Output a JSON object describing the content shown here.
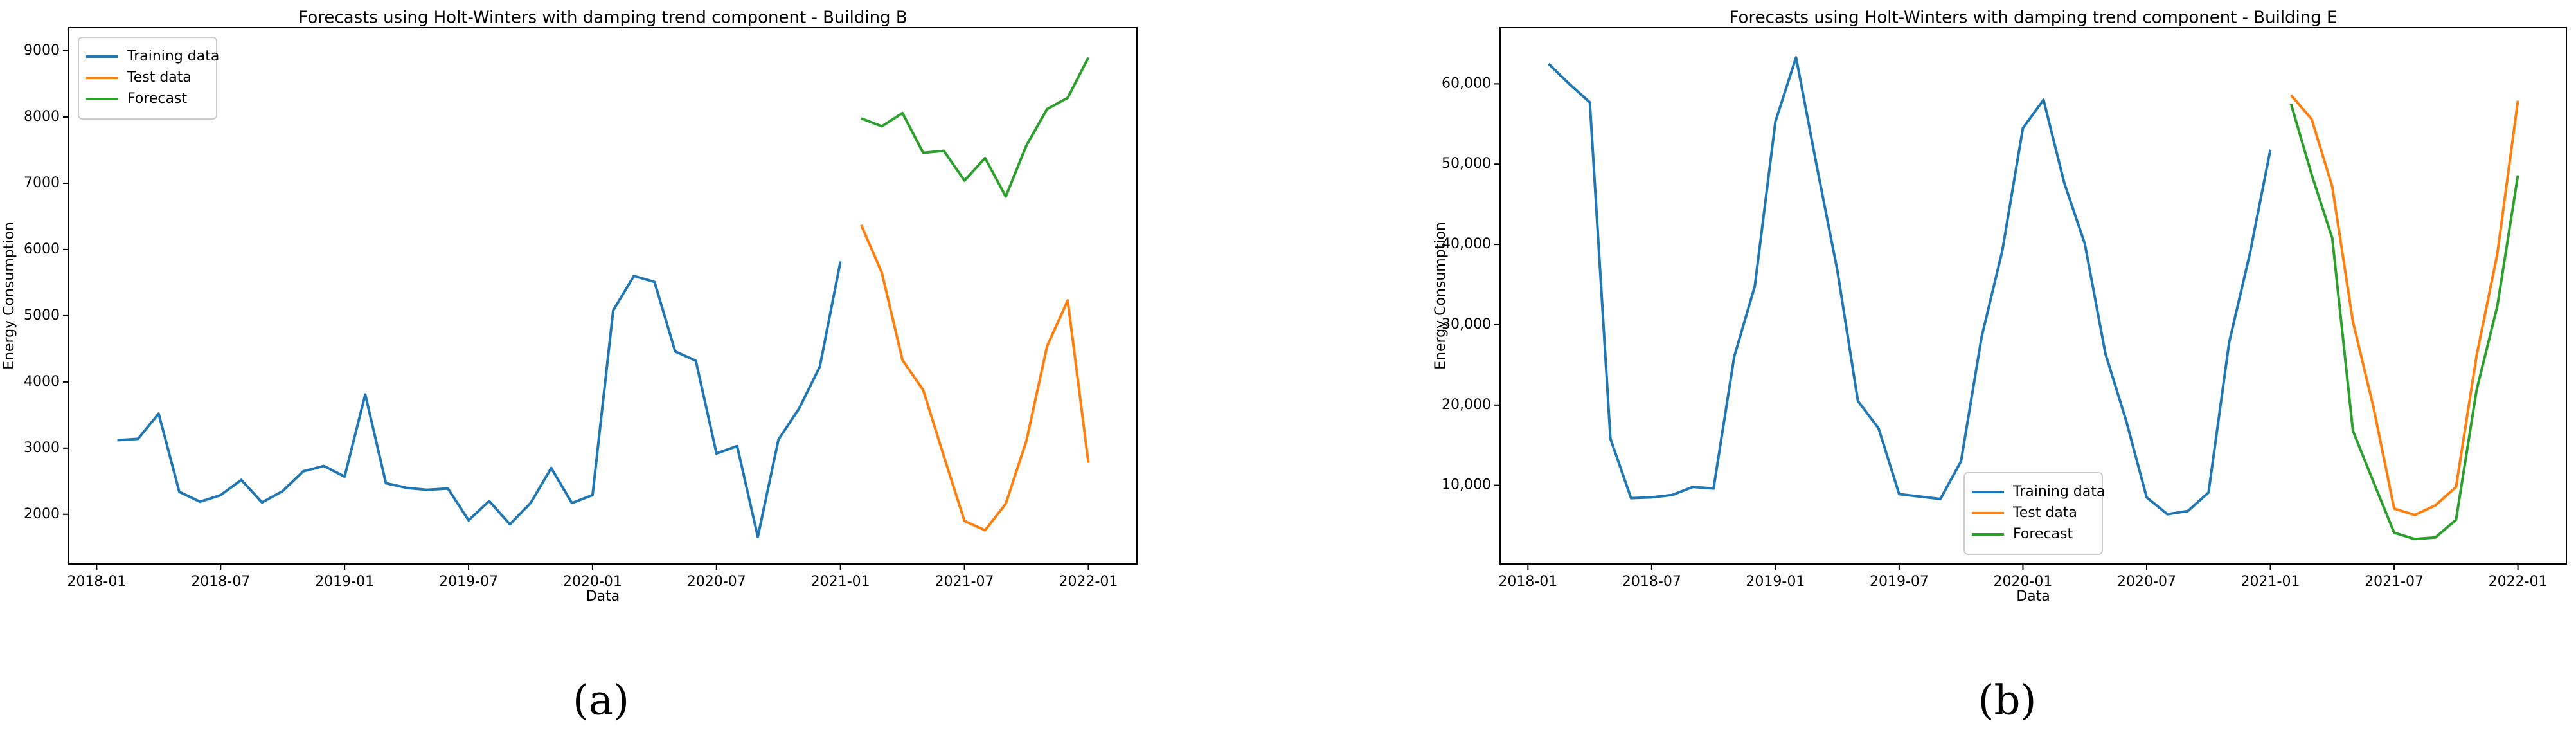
{
  "chart_data": [
    {
      "type": "line",
      "title": "Forecasts using Holt-Winters with damping trend component - Building B",
      "caption": "(a)",
      "x_label": "Data",
      "y_label": "Energy Consumption",
      "x": [
        "2018-02",
        "2018-03",
        "2018-04",
        "2018-05",
        "2018-06",
        "2018-07",
        "2018-08",
        "2018-09",
        "2018-10",
        "2018-11",
        "2018-12",
        "2019-01",
        "2019-02",
        "2019-03",
        "2019-04",
        "2019-05",
        "2019-06",
        "2019-07",
        "2019-08",
        "2019-09",
        "2019-10",
        "2019-11",
        "2019-12",
        "2020-01",
        "2020-02",
        "2020-03",
        "2020-04",
        "2020-05",
        "2020-06",
        "2020-07",
        "2020-08",
        "2020-09",
        "2020-10",
        "2020-11",
        "2020-12",
        "2021-01",
        "2021-02",
        "2021-03",
        "2021-04",
        "2021-05",
        "2021-06",
        "2021-07",
        "2021-08",
        "2021-09",
        "2021-10",
        "2021-11",
        "2021-12",
        "2022-01"
      ],
      "series": [
        {
          "name": "Training data",
          "color": "#1f77b4",
          "values": [
            3120,
            3140,
            3520,
            2340,
            2190,
            2290,
            2520,
            2180,
            2350,
            2650,
            2730,
            2570,
            3810,
            2470,
            2400,
            2370,
            2390,
            1910,
            2200,
            1850,
            2170,
            2700,
            2170,
            2290,
            5080,
            5600,
            5510,
            4460,
            4320,
            2920,
            3030,
            1660,
            3130,
            3600,
            4230,
            5820,
            null,
            null,
            null,
            null,
            null,
            null,
            null,
            null,
            null,
            null,
            null,
            null
          ]
        },
        {
          "name": "Test data",
          "color": "#ff7f0e",
          "values": [
            null,
            null,
            null,
            null,
            null,
            null,
            null,
            null,
            null,
            null,
            null,
            null,
            null,
            null,
            null,
            null,
            null,
            null,
            null,
            null,
            null,
            null,
            null,
            null,
            null,
            null,
            null,
            null,
            null,
            null,
            null,
            null,
            null,
            null,
            null,
            null,
            6370,
            5650,
            4330,
            3880,
            2880,
            1900,
            1760,
            2160,
            3110,
            4540,
            5230,
            2780
          ]
        },
        {
          "name": "Forecast",
          "color": "#2ca02c",
          "values": [
            null,
            null,
            null,
            null,
            null,
            null,
            null,
            null,
            null,
            null,
            null,
            null,
            null,
            null,
            null,
            null,
            null,
            null,
            null,
            null,
            null,
            null,
            null,
            null,
            null,
            null,
            null,
            null,
            null,
            null,
            null,
            null,
            null,
            null,
            null,
            null,
            7980,
            7860,
            8060,
            7460,
            7490,
            7040,
            7380,
            6800,
            7570,
            8120,
            8290,
            8900
          ]
        }
      ],
      "xticks": [
        "2018-01",
        "2018-07",
        "2019-01",
        "2019-07",
        "2020-01",
        "2020-07",
        "2021-01",
        "2021-07",
        "2022-01"
      ],
      "ylim": [
        1250,
        9350
      ],
      "yticks": [
        2000,
        3000,
        4000,
        5000,
        6000,
        7000,
        8000,
        9000
      ],
      "legend": "upper left"
    },
    {
      "type": "line",
      "title": "Forecasts using Holt-Winters with damping trend component - Building E",
      "caption": "(b)",
      "x_label": "Data",
      "y_label": "Energy Consumption",
      "x": [
        "2018-02",
        "2018-03",
        "2018-04",
        "2018-05",
        "2018-06",
        "2018-07",
        "2018-08",
        "2018-09",
        "2018-10",
        "2018-11",
        "2018-12",
        "2019-01",
        "2019-02",
        "2019-03",
        "2019-04",
        "2019-05",
        "2019-06",
        "2019-07",
        "2019-08",
        "2019-09",
        "2019-10",
        "2019-11",
        "2019-12",
        "2020-01",
        "2020-02",
        "2020-03",
        "2020-04",
        "2020-05",
        "2020-06",
        "2020-07",
        "2020-08",
        "2020-09",
        "2020-10",
        "2020-11",
        "2020-12",
        "2021-01",
        "2021-02",
        "2021-03",
        "2021-04",
        "2021-05",
        "2021-06",
        "2021-07",
        "2021-08",
        "2021-09",
        "2021-10",
        "2021-11",
        "2021-12",
        "2022-01"
      ],
      "series": [
        {
          "name": "Training data",
          "color": "#1f77b4",
          "values": [
            62500,
            60000,
            57700,
            15800,
            8400,
            8500,
            8800,
            9800,
            9600,
            26000,
            34800,
            55300,
            63300,
            49800,
            36800,
            20500,
            17100,
            8900,
            8600,
            8300,
            13000,
            28500,
            39200,
            54500,
            58000,
            47700,
            40100,
            26400,
            18100,
            8500,
            6400,
            6800,
            9100,
            27800,
            38800,
            51800,
            null,
            null,
            null,
            null,
            null,
            null,
            null,
            null,
            null,
            null,
            null,
            null
          ]
        },
        {
          "name": "Test data",
          "color": "#ff7f0e",
          "values": [
            null,
            null,
            null,
            null,
            null,
            null,
            null,
            null,
            null,
            null,
            null,
            null,
            null,
            null,
            null,
            null,
            null,
            null,
            null,
            null,
            null,
            null,
            null,
            null,
            null,
            null,
            null,
            null,
            null,
            null,
            null,
            null,
            null,
            null,
            null,
            null,
            58600,
            55600,
            47200,
            30400,
            19700,
            7100,
            6300,
            7500,
            9800,
            26200,
            38800,
            57900
          ]
        },
        {
          "name": "Forecast",
          "color": "#2ca02c",
          "values": [
            null,
            null,
            null,
            null,
            null,
            null,
            null,
            null,
            null,
            null,
            null,
            null,
            null,
            null,
            null,
            null,
            null,
            null,
            null,
            null,
            null,
            null,
            null,
            null,
            null,
            null,
            null,
            null,
            null,
            null,
            null,
            null,
            null,
            null,
            null,
            null,
            57500,
            48700,
            40800,
            16800,
            10400,
            4100,
            3300,
            3500,
            5700,
            21900,
            32300,
            48600
          ]
        }
      ],
      "xticks": [
        "2018-01",
        "2018-07",
        "2019-01",
        "2019-07",
        "2020-01",
        "2020-07",
        "2021-01",
        "2021-07",
        "2022-01"
      ],
      "ylim": [
        200,
        67000
      ],
      "yticks": [
        {
          "value": 10000,
          "label": "10,000"
        },
        {
          "value": 20000,
          "label": "20,000"
        },
        {
          "value": 30000,
          "label": "30,000"
        },
        {
          "value": 40000,
          "label": "40,000"
        },
        {
          "value": 50000,
          "label": "50,000"
        },
        {
          "value": 60000,
          "label": "60,000"
        }
      ],
      "legend": "lower center"
    }
  ]
}
